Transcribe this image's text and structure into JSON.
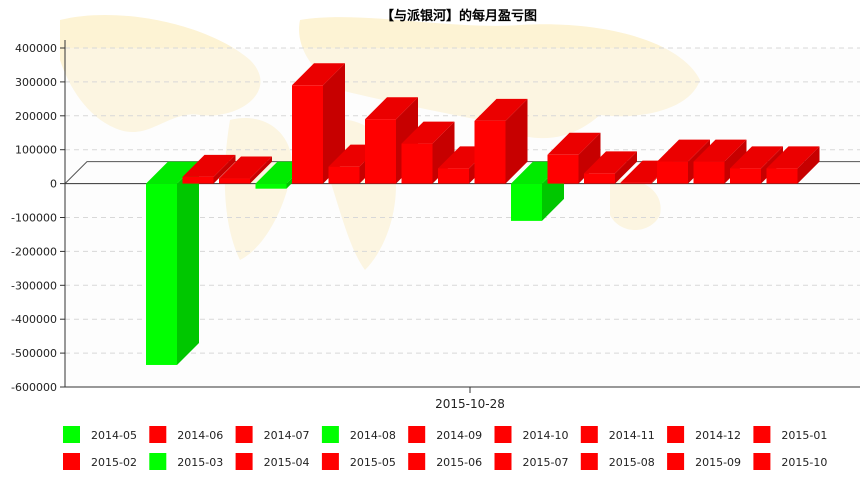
{
  "chart_data": {
    "type": "bar",
    "title": "【与派银河】的每月盈亏图",
    "xlabel": "",
    "ylabel": "",
    "x_category": "2015-10-28",
    "ylim": [
      -600000,
      400000
    ],
    "yticks": [
      400000,
      300000,
      200000,
      100000,
      0,
      -100000,
      -200000,
      -300000,
      -400000,
      -500000,
      -600000
    ],
    "grid": true,
    "legend_position": "bottom",
    "colors": {
      "positive": "#ff0000",
      "negative": "#00ff00"
    },
    "series": [
      {
        "name": "2014-05",
        "value": -535000,
        "color": "#00ff00"
      },
      {
        "name": "2014-06",
        "value": 20000,
        "color": "#ff0000"
      },
      {
        "name": "2014-07",
        "value": 15000,
        "color": "#ff0000"
      },
      {
        "name": "2014-08",
        "value": -15000,
        "color": "#00ff00"
      },
      {
        "name": "2014-09",
        "value": 290000,
        "color": "#ff0000"
      },
      {
        "name": "2014-10",
        "value": 50000,
        "color": "#ff0000"
      },
      {
        "name": "2014-11",
        "value": 190000,
        "color": "#ff0000"
      },
      {
        "name": "2014-12",
        "value": 118000,
        "color": "#ff0000"
      },
      {
        "name": "2015-01",
        "value": 45000,
        "color": "#ff0000"
      },
      {
        "name": "2015-02",
        "value": 185000,
        "color": "#ff0000"
      },
      {
        "name": "2015-03",
        "value": -110000,
        "color": "#00ff00"
      },
      {
        "name": "2015-04",
        "value": 85000,
        "color": "#ff0000"
      },
      {
        "name": "2015-05",
        "value": 30000,
        "color": "#ff0000"
      },
      {
        "name": "2015-06",
        "value": 3000,
        "color": "#ff0000"
      },
      {
        "name": "2015-07",
        "value": 65000,
        "color": "#ff0000"
      },
      {
        "name": "2015-08",
        "value": 65000,
        "color": "#ff0000"
      },
      {
        "name": "2015-09",
        "value": 45000,
        "color": "#ff0000"
      },
      {
        "name": "2015-10",
        "value": 45000,
        "color": "#ff0000"
      }
    ]
  }
}
